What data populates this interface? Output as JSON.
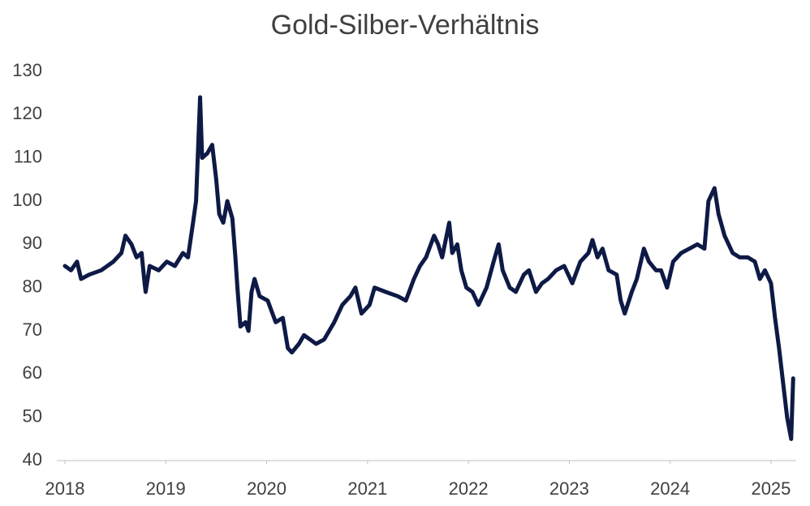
{
  "chart_data": {
    "type": "line",
    "title": "Gold-Silber-Verhältnis",
    "xlim": [
      2018,
      2025.25
    ],
    "xticks": [
      2018,
      2019,
      2020,
      2021,
      2022,
      2023,
      2024,
      2025
    ],
    "ylim": [
      40,
      130
    ],
    "yticks": [
      40,
      50,
      60,
      70,
      80,
      90,
      100,
      110,
      120,
      130
    ],
    "grid": false,
    "series": [
      {
        "color": "#0e1a45",
        "x": [
          2018.0,
          2018.06,
          2018.12,
          2018.16,
          2018.24,
          2018.36,
          2018.48,
          2018.56,
          2018.6,
          2018.66,
          2018.71,
          2018.76,
          2018.79,
          2018.8,
          2018.84,
          2018.93,
          2019.01,
          2019.09,
          2019.17,
          2019.22,
          2019.27,
          2019.3,
          2019.34,
          2019.36,
          2019.41,
          2019.46,
          2019.5,
          2019.53,
          2019.57,
          2019.61,
          2019.66,
          2019.69,
          2019.71,
          2019.74,
          2019.79,
          2019.82,
          2019.85,
          2019.88,
          2019.93,
          2020.01,
          2020.09,
          2020.16,
          2020.21,
          2020.25,
          2020.32,
          2020.37,
          2020.49,
          2020.57,
          2020.67,
          2020.75,
          2020.83,
          2020.88,
          2020.94,
          2021.02,
          2021.07,
          2021.18,
          2021.3,
          2021.38,
          2021.46,
          2021.52,
          2021.58,
          2021.66,
          2021.7,
          2021.74,
          2021.81,
          2021.84,
          2021.89,
          2021.93,
          2021.98,
          2022.04,
          2022.1,
          2022.18,
          2022.25,
          2022.3,
          2022.34,
          2022.41,
          2022.47,
          2022.55,
          2022.6,
          2022.67,
          2022.73,
          2022.79,
          2022.87,
          2022.95,
          2023.03,
          2023.11,
          2023.19,
          2023.23,
          2023.28,
          2023.33,
          2023.39,
          2023.47,
          2023.51,
          2023.55,
          2023.62,
          2023.67,
          2023.74,
          2023.79,
          2023.86,
          2023.91,
          2023.97,
          2024.03,
          2024.11,
          2024.19,
          2024.27,
          2024.34,
          2024.38,
          2024.44,
          2024.48,
          2024.54,
          2024.62,
          2024.69,
          2024.77,
          2024.84,
          2024.89,
          2024.94,
          2025.0,
          2025.04,
          2025.08,
          2025.12,
          2025.16,
          2025.2,
          2025.22
        ],
        "values": [
          85,
          84,
          86,
          82,
          83,
          84,
          86,
          88,
          92,
          90,
          87,
          88,
          81,
          79,
          85,
          84,
          86,
          85,
          88,
          87,
          95,
          100,
          124,
          110,
          111,
          113,
          105,
          97,
          95,
          100,
          96,
          87,
          80,
          71,
          72,
          70,
          79,
          82,
          78,
          77,
          72,
          73,
          66,
          65,
          67,
          69,
          67,
          68,
          72,
          76,
          78,
          80,
          74,
          76,
          80,
          79,
          78,
          77,
          82,
          85,
          87,
          92,
          90,
          87,
          95,
          88,
          90,
          84,
          80,
          79,
          76,
          80,
          86,
          90,
          84,
          80,
          79,
          83,
          84,
          79,
          81,
          82,
          84,
          85,
          81,
          86,
          88,
          91,
          87,
          89,
          84,
          83,
          77,
          74,
          79,
          82,
          89,
          86,
          84,
          84,
          80,
          86,
          88,
          89,
          90,
          89,
          100,
          103,
          97,
          92,
          88,
          87,
          87,
          86,
          82,
          84,
          81,
          73,
          66,
          58,
          50,
          45,
          59
        ]
      }
    ]
  }
}
